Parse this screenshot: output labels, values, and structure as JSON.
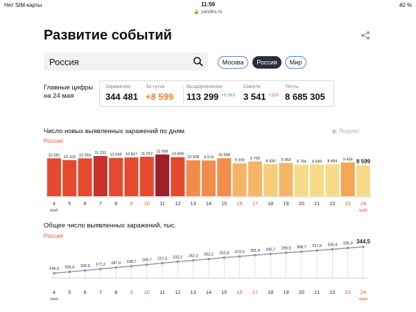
{
  "status": {
    "carrier": "Нет SIM-карты",
    "time": "11:59",
    "battery": "40 %"
  },
  "browser": {
    "url": "yandex.ru"
  },
  "page": {
    "title": "Развитие событий"
  },
  "search": {
    "value": "Россия"
  },
  "regions": [
    "Москва",
    "Россия",
    "Мир"
  ],
  "active_region": "Россия",
  "headline": {
    "label_line1": "Главные цифры",
    "label_line2": "на 24 мая"
  },
  "stats": [
    {
      "label": "Заражения",
      "value": "344 481",
      "delta": ""
    },
    {
      "label": "За сутки",
      "value": "+8 599",
      "delta": ""
    },
    {
      "label": "Выздоровления",
      "value": "113 299",
      "delta": "+5 363"
    },
    {
      "label": "Смерти",
      "value": "3 541",
      "delta": "+153"
    },
    {
      "label": "Тесты",
      "value": "8 685 305",
      "delta": ""
    }
  ],
  "brand": "Яндекс",
  "colors": {
    "accent_blue": "#4a86e8",
    "orange": "#f08030",
    "red_dark": "#a52a2a",
    "weekend_red": "#e8542e"
  },
  "chart_data": [
    {
      "type": "bar",
      "title": "Число новых выявленных заражений по дням",
      "subtitle": "Россия",
      "categories": [
        "4",
        "5",
        "6",
        "7",
        "8",
        "9",
        "10",
        "11",
        "12",
        "13",
        "14",
        "15",
        "16",
        "17",
        "18",
        "19",
        "20",
        "21",
        "22",
        "23",
        "24"
      ],
      "first_month_label": "май",
      "last_month_label": "май",
      "weekend_categories": [
        "9",
        "10",
        "16",
        "17",
        "23",
        "24"
      ],
      "values": [
        10581,
        10102,
        10559,
        11231,
        10699,
        10817,
        11012,
        11656,
        10899,
        10028,
        9974,
        10598,
        9200,
        9709,
        8926,
        9263,
        8764,
        8849,
        8894,
        9434,
        8599
      ],
      "value_labels": [
        "10 581",
        "10 102",
        "10 559",
        "11 231",
        "10 699",
        "10 817",
        "11 012",
        "11 656",
        "10 899",
        "10 028",
        "9 974",
        "10 598",
        "9 200",
        "9 709",
        "8 926",
        "9 263",
        "8 764",
        "8 849",
        "8 894",
        "9 434",
        "8 599"
      ],
      "bar_colors": [
        "#e64a2e",
        "#e64a2e",
        "#e64a2e",
        "#c8322c",
        "#e64a2e",
        "#e64a2e",
        "#e64a2e",
        "#a01e2a",
        "#e64a2e",
        "#f28c4a",
        "#f28c4a",
        "#f28c4a",
        "#f5b565",
        "#f5b565",
        "#f7cc7a",
        "#f5b565",
        "#f8da88",
        "#f8da88",
        "#f8da88",
        "#f5a654",
        "#f8da88"
      ],
      "ylim": [
        0,
        12000
      ]
    },
    {
      "type": "line",
      "title": "Общее число выявленных заражений, тыс.",
      "subtitle": "Россия",
      "categories": [
        "4",
        "5",
        "6",
        "7",
        "8",
        "9",
        "10",
        "11",
        "12",
        "13",
        "14",
        "15",
        "16",
        "17",
        "18",
        "19",
        "20",
        "21",
        "22",
        "23",
        "24"
      ],
      "first_month_label": "мая",
      "last_month_label": "мая",
      "weekend_categories": [
        "9",
        "10",
        "16",
        "17",
        "23",
        "24"
      ],
      "values": [
        145.3,
        155.4,
        165.9,
        177.2,
        187.9,
        198.7,
        209.7,
        221.3,
        232.2,
        242.3,
        252.2,
        262.8,
        272.0,
        281.8,
        290.7,
        299.9,
        308.7,
        317.6,
        326.4,
        335.9,
        344.5
      ],
      "value_labels": [
        "145,3",
        "155,4",
        "165,9",
        "177,2",
        "187,9",
        "198,7",
        "209,7",
        "221,3",
        "232,2",
        "242,3",
        "252,2",
        "262,8",
        "272,0",
        "281,8",
        "290,7",
        "299,9",
        "308,7",
        "317,6",
        "326,4",
        "335,9",
        "344,5"
      ],
      "ylim": [
        0,
        360
      ]
    }
  ]
}
